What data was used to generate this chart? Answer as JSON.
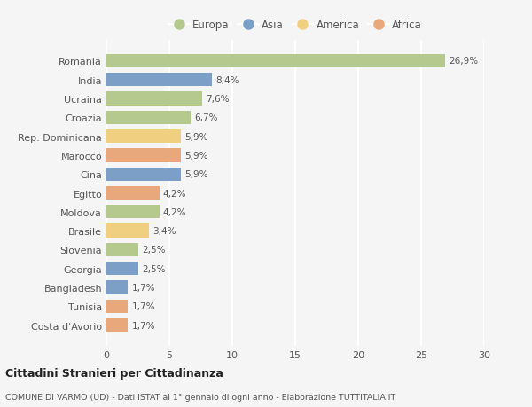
{
  "countries": [
    "Romania",
    "India",
    "Ucraina",
    "Croazia",
    "Rep. Dominicana",
    "Marocco",
    "Cina",
    "Egitto",
    "Moldova",
    "Brasile",
    "Slovenia",
    "Georgia",
    "Bangladesh",
    "Tunisia",
    "Costa d'Avorio"
  ],
  "values": [
    26.9,
    8.4,
    7.6,
    6.7,
    5.9,
    5.9,
    5.9,
    4.2,
    4.2,
    3.4,
    2.5,
    2.5,
    1.7,
    1.7,
    1.7
  ],
  "labels": [
    "26,9%",
    "8,4%",
    "7,6%",
    "6,7%",
    "5,9%",
    "5,9%",
    "5,9%",
    "4,2%",
    "4,2%",
    "3,4%",
    "2,5%",
    "2,5%",
    "1,7%",
    "1,7%",
    "1,7%"
  ],
  "categories": [
    "Europa",
    "Asia",
    "Europa",
    "Europa",
    "America",
    "Africa",
    "Asia",
    "Africa",
    "Europa",
    "America",
    "Europa",
    "Asia",
    "Asia",
    "Africa",
    "Africa"
  ],
  "colors": {
    "Europa": "#b5c98e",
    "Asia": "#7b9fc7",
    "America": "#f0d080",
    "Africa": "#e8a87c"
  },
  "legend_order": [
    "Europa",
    "Asia",
    "America",
    "Africa"
  ],
  "title": "Cittadini Stranieri per Cittadinanza",
  "subtitle": "COMUNE DI VARMO (UD) - Dati ISTAT al 1° gennaio di ogni anno - Elaborazione TUTTITALIA.IT",
  "xlim": [
    0,
    30
  ],
  "xticks": [
    0,
    5,
    10,
    15,
    20,
    25,
    30
  ],
  "background_color": "#f5f5f5",
  "grid_color": "#ffffff"
}
